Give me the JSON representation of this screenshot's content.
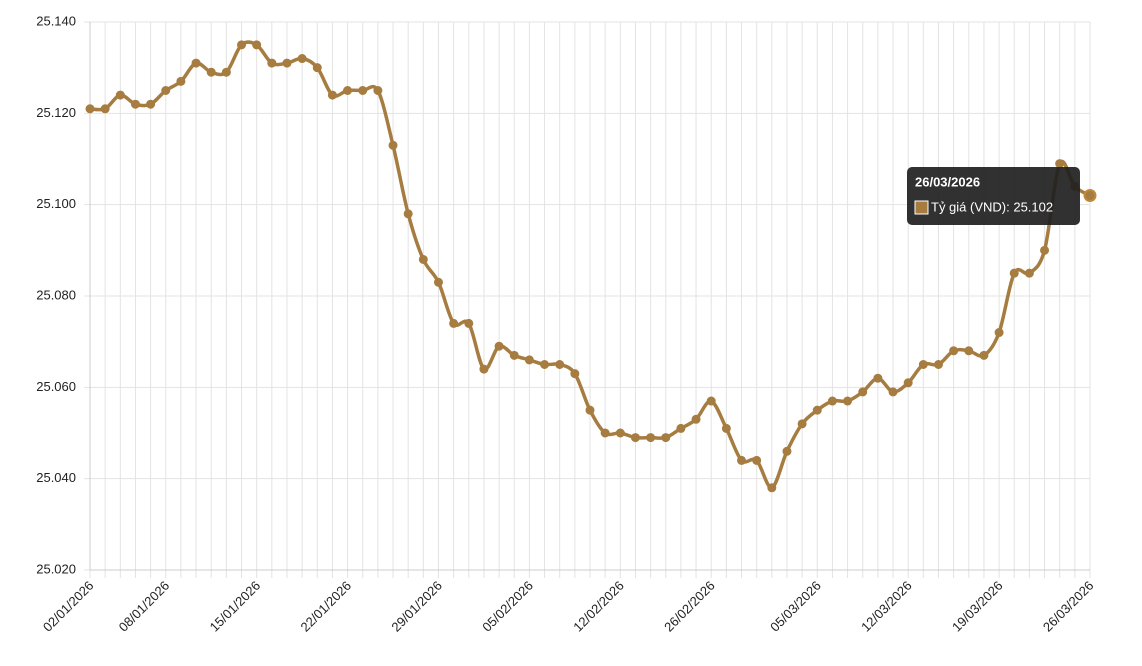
{
  "chart_data": {
    "type": "line",
    "categories": [
      "02/01/2026",
      null,
      null,
      null,
      null,
      "08/01/2026",
      null,
      null,
      null,
      null,
      null,
      "15/01/2026",
      null,
      null,
      null,
      null,
      null,
      "22/01/2026",
      null,
      null,
      null,
      null,
      null,
      "29/01/2026",
      null,
      null,
      null,
      null,
      null,
      "05/02/2026",
      null,
      null,
      null,
      null,
      null,
      "12/02/2026",
      null,
      null,
      null,
      null,
      null,
      "26/02/2026",
      null,
      null,
      null,
      null,
      null,
      null,
      "05/03/2026",
      null,
      null,
      null,
      null,
      null,
      "12/03/2026",
      null,
      null,
      null,
      null,
      null,
      "19/03/2026",
      null,
      null,
      null,
      null,
      null,
      "26/03/2026"
    ],
    "series": [
      {
        "name": "Tỷ giá (VND)",
        "color": "#a67c40",
        "values": [
          25.121,
          25.121,
          25.124,
          25.122,
          25.122,
          25.125,
          25.127,
          25.131,
          25.129,
          25.129,
          25.135,
          25.135,
          25.131,
          25.131,
          25.132,
          25.13,
          25.124,
          25.125,
          25.125,
          25.125,
          25.113,
          25.098,
          25.088,
          25.083,
          25.074,
          25.074,
          25.064,
          25.069,
          25.067,
          25.066,
          25.065,
          25.065,
          25.063,
          25.055,
          25.05,
          25.05,
          25.049,
          25.049,
          25.049,
          25.051,
          25.053,
          25.057,
          25.051,
          25.044,
          25.044,
          25.038,
          25.046,
          25.052,
          25.055,
          25.057,
          25.057,
          25.059,
          25.062,
          25.059,
          25.061,
          25.065,
          25.065,
          25.068,
          25.068,
          25.067,
          25.072,
          25.085,
          25.085,
          25.09,
          25.109,
          25.104,
          25.102
        ]
      }
    ],
    "ylim": [
      25.02,
      25.14
    ],
    "yticks": [
      {
        "value": 25.02,
        "label": "25.020"
      },
      {
        "value": 25.04,
        "label": "25.040"
      },
      {
        "value": 25.06,
        "label": "25.060"
      },
      {
        "value": 25.08,
        "label": "25.080"
      },
      {
        "value": 25.1,
        "label": "25.100"
      },
      {
        "value": 25.12,
        "label": "25.120"
      },
      {
        "value": 25.14,
        "label": "25.140"
      }
    ],
    "grid": true,
    "tooltip": {
      "title": "26/03/2026",
      "label": "Tỷ giá (VND): 25.102"
    }
  }
}
